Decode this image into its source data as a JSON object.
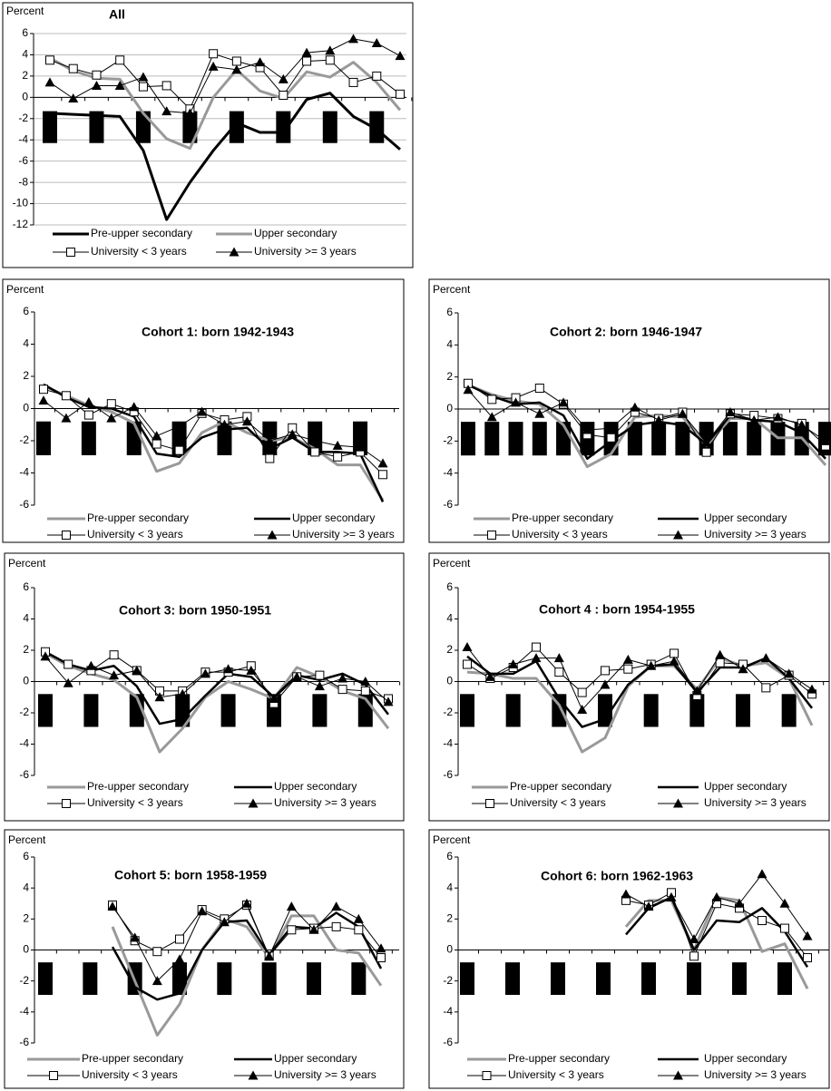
{
  "chart_data": [
    {
      "type": "line",
      "title": "All",
      "y_label": "Percent",
      "grid": true,
      "categories": [
        null,
        null,
        null,
        null,
        null,
        null,
        null,
        null,
        null,
        null,
        null,
        null,
        null,
        null,
        null,
        null
      ],
      "ylim": [
        -12,
        6
      ],
      "yticks": [
        -12,
        -10,
        -8,
        -6,
        -4,
        -2,
        0,
        2,
        4,
        6
      ],
      "bars": {
        "x": [
          0,
          2,
          4,
          6,
          8,
          10,
          12,
          14
        ],
        "range": [
          -1.3,
          -4.3
        ],
        "color": "#000000"
      },
      "series": [
        {
          "name": "Pre-upper secondary",
          "color": "#000000",
          "line_width": 3,
          "marker": null,
          "values": [
            -1.5,
            -1.6,
            -1.7,
            -1.8,
            -5,
            -11.5,
            -8,
            -5,
            -2.4,
            -3.3,
            -3.3,
            -0.2,
            0.4,
            -1.8,
            -3,
            -4.9
          ]
        },
        {
          "name": "Upper secondary",
          "color": "#999999",
          "line_width": 3,
          "marker": null,
          "values": [
            3.7,
            2.5,
            1.8,
            1.7,
            -1.5,
            -3.9,
            -4.8,
            0,
            2.6,
            0.6,
            -0.1,
            2.4,
            1.9,
            3.3,
            1.4,
            -1.2
          ]
        },
        {
          "name": "University < 3 years",
          "color": "#000000",
          "line_width": 1,
          "marker": "square",
          "values": [
            3.5,
            2.7,
            2.1,
            3.5,
            1,
            1.1,
            -1.1,
            4.1,
            3.4,
            2.8,
            0.2,
            3.4,
            3.5,
            1.4,
            2,
            0.3
          ]
        },
        {
          "name": "University >= 3 years",
          "color": "#000000",
          "line_width": 1,
          "marker": "triangle",
          "values": [
            1.4,
            -0.1,
            1.1,
            1.1,
            1.9,
            -1.3,
            -1.5,
            2.9,
            2.6,
            3.3,
            1.7,
            4.2,
            4.4,
            5.5,
            5.1,
            3.9
          ]
        }
      ]
    },
    {
      "type": "line",
      "title": "Cohort 1: born 1942-1943",
      "y_label": "Percent",
      "grid": false,
      "categories": [
        null,
        null,
        null,
        null,
        null,
        null,
        null,
        null,
        null,
        null,
        null,
        null,
        null,
        null,
        null,
        null
      ],
      "ylim": [
        -6,
        6
      ],
      "yticks": [
        -6,
        -4,
        -2,
        0,
        2,
        4,
        6
      ],
      "bars": {
        "x": [
          0,
          2,
          4,
          6,
          8,
          10,
          12,
          14
        ],
        "range": [
          -0.8,
          -2.9
        ],
        "color": "#000000"
      },
      "series": [
        {
          "name": "Pre-upper secondary",
          "color": "#999999",
          "line_width": 3,
          "marker": null,
          "values": [
            1.4,
            0.8,
            0.2,
            -0.2,
            -0.9,
            -3.9,
            -3.4,
            -1.5,
            -0.8,
            -1.5,
            -2,
            -1.8,
            -2.5,
            -3.5,
            -3.5,
            -5.7
          ]
        },
        {
          "name": "Upper secondary",
          "color": "#000000",
          "line_width": 2.5,
          "marker": null,
          "values": [
            1.5,
            0.7,
            0.1,
            0,
            -0.5,
            -2.8,
            -3,
            -1.8,
            -1.3,
            -1.2,
            -2.5,
            -1.8,
            -2.7,
            -2.7,
            -2.8,
            -5.8
          ]
        },
        {
          "name": "University < 3 years",
          "color": "#000000",
          "line_width": 1,
          "marker": "square",
          "values": [
            1.2,
            0.8,
            -0.4,
            0.3,
            -0.2,
            -2.2,
            -2.6,
            -0.3,
            -0.7,
            -0.5,
            -3.1,
            -1.2,
            -2.7,
            -3,
            -2.7,
            -4.1
          ]
        },
        {
          "name": "University >= 3 years",
          "color": "#000000",
          "line_width": 1,
          "marker": "triangle",
          "values": [
            0.5,
            -0.6,
            0.4,
            -0.6,
            0.1,
            -1.7,
            -1.1,
            -0.2,
            -1,
            -0.8,
            -2,
            -1.6,
            -2,
            -2.3,
            -2.4,
            -3.4
          ]
        }
      ]
    },
    {
      "type": "line",
      "title": "Cohort 2: born 1946-1947",
      "y_label": "Percent",
      "grid": false,
      "categories": [
        null,
        null,
        null,
        null,
        null,
        null,
        null,
        null,
        null,
        null,
        null,
        null,
        null,
        null,
        null,
        null
      ],
      "ylim": [
        -6,
        6
      ],
      "yticks": [
        -6,
        -4,
        -2,
        0,
        2,
        4,
        6
      ],
      "bars": {
        "x": [
          0,
          1,
          2,
          3,
          4,
          5,
          6,
          7,
          8,
          9,
          10,
          11,
          12,
          13,
          14,
          15
        ],
        "range": [
          -0.8,
          -2.9
        ],
        "color": "#000000"
      },
      "series": [
        {
          "name": "Pre-upper secondary",
          "color": "#999999",
          "line_width": 3,
          "marker": null,
          "values": [
            1.5,
            0.9,
            0.5,
            0.3,
            -1,
            -3.6,
            -2.8,
            -0.5,
            -0.4,
            -0.5,
            -2.3,
            -0.6,
            -0.6,
            -1.8,
            -1.8,
            -3.5
          ]
        },
        {
          "name": "Upper secondary",
          "color": "#000000",
          "line_width": 2.5,
          "marker": null,
          "values": [
            1.5,
            0.8,
            0.3,
            0.4,
            -0.4,
            -3.1,
            -2,
            -1,
            -0.8,
            -1,
            -2.2,
            -0.4,
            -0.7,
            -0.8,
            -1.5,
            -3.1
          ]
        },
        {
          "name": "University < 3 years",
          "color": "#000000",
          "line_width": 1,
          "marker": "square",
          "values": [
            1.6,
            0.6,
            0.7,
            1.3,
            0.3,
            -1.6,
            -1.8,
            -0.2,
            -0.6,
            -0.2,
            -2.7,
            -0.3,
            -0.4,
            -0.6,
            -0.9,
            -2.3
          ]
        },
        {
          "name": "University >= 3 years",
          "color": "#000000",
          "line_width": 1,
          "marker": "triangle",
          "values": [
            1.2,
            -0.5,
            0.4,
            -0.3,
            0.4,
            -1.3,
            -1.2,
            0.1,
            -0.7,
            -0.3,
            -2.1,
            -0.2,
            -0.7,
            -0.5,
            -1,
            -2
          ]
        }
      ]
    },
    {
      "type": "line",
      "title": "Cohort 3: born 1950-1951",
      "y_label": "Percent",
      "grid": false,
      "categories": [
        null,
        null,
        null,
        null,
        null,
        null,
        null,
        null,
        null,
        null,
        null,
        null,
        null,
        null,
        null,
        null
      ],
      "ylim": [
        -6,
        6
      ],
      "yticks": [
        -6,
        -4,
        -2,
        0,
        2,
        4,
        6
      ],
      "bars": {
        "x": [
          0,
          2,
          4,
          6,
          8,
          10,
          12,
          14
        ],
        "range": [
          -0.8,
          -2.9
        ],
        "color": "#000000"
      },
      "series": [
        {
          "name": "Pre-upper secondary",
          "color": "#999999",
          "line_width": 3,
          "marker": null,
          "values": [
            1.8,
            1,
            0.5,
            0.1,
            -1,
            -4.5,
            -3,
            -1,
            0,
            -0.5,
            -1.1,
            0.9,
            0.3,
            -0.6,
            -1.1,
            -3
          ]
        },
        {
          "name": "Upper secondary",
          "color": "#000000",
          "line_width": 2.5,
          "marker": null,
          "values": [
            1.9,
            1.1,
            0.7,
            1,
            -0.3,
            -2.7,
            -2.4,
            -0.9,
            0.5,
            0.3,
            -1,
            0.4,
            0.1,
            0.5,
            -0.2,
            -2.1
          ]
        },
        {
          "name": "University < 3 years",
          "color": "#000000",
          "line_width": 1,
          "marker": "square",
          "values": [
            1.9,
            1.1,
            0.7,
            1.7,
            0.7,
            -0.6,
            -0.6,
            0.6,
            0.6,
            1,
            -1.4,
            0.3,
            0.4,
            -0.5,
            -0.6,
            -1.1
          ]
        },
        {
          "name": "University >= 3 years",
          "color": "#000000",
          "line_width": 1,
          "marker": "triangle",
          "values": [
            1.6,
            -0.1,
            1,
            0.4,
            0.7,
            -1,
            -0.8,
            0.5,
            0.8,
            0.7,
            -1.1,
            0.3,
            -0.3,
            0.2,
            0,
            -1.3
          ]
        }
      ]
    },
    {
      "type": "line",
      "title": "Cohort 4 : born 1954-1955",
      "y_label": "Percent",
      "grid": false,
      "categories": [
        null,
        null,
        null,
        null,
        null,
        null,
        null,
        null,
        null,
        null,
        null,
        null,
        null,
        null,
        null,
        null
      ],
      "ylim": [
        -6,
        6
      ],
      "yticks": [
        -6,
        -4,
        -2,
        0,
        2,
        4,
        6
      ],
      "bars": {
        "x": [
          0,
          2,
          4,
          6,
          8,
          10,
          12,
          14
        ],
        "range": [
          -0.8,
          -2.9
        ],
        "color": "#000000"
      },
      "series": [
        {
          "name": "Pre-upper secondary",
          "color": "#999999",
          "line_width": 3,
          "marker": null,
          "values": [
            0.6,
            0.5,
            0.2,
            0.2,
            -1.5,
            -4.5,
            -3.6,
            -0.3,
            1,
            1,
            -0.5,
            1.5,
            1,
            1.2,
            0.2,
            -2.8
          ]
        },
        {
          "name": "Upper secondary",
          "color": "#000000",
          "line_width": 2.5,
          "marker": null,
          "values": [
            1.6,
            0.5,
            0.5,
            1.3,
            -1.1,
            -2.9,
            -2.4,
            -0.2,
            1,
            1.1,
            -0.7,
            0.9,
            0.9,
            1.5,
            0.2,
            -1.7
          ]
        },
        {
          "name": "University < 3 years",
          "color": "#000000",
          "line_width": 1,
          "marker": "square",
          "values": [
            1.1,
            0.2,
            0.9,
            2.2,
            0.6,
            -0.7,
            0.7,
            0.8,
            1.1,
            1.8,
            -0.9,
            1.2,
            1.1,
            -0.4,
            0.4,
            -0.8
          ]
        },
        {
          "name": "University >= 3 years",
          "color": "#000000",
          "line_width": 1,
          "marker": "triangle",
          "values": [
            2.2,
            0.3,
            1.1,
            1.5,
            1.5,
            -1.8,
            -0.2,
            1.4,
            1,
            1.3,
            -0.6,
            1.7,
            0.8,
            1.5,
            0.5,
            -0.5
          ]
        }
      ]
    },
    {
      "type": "line",
      "title": "Cohort 5: born 1958-1959",
      "y_label": "Percent",
      "grid": false,
      "categories": [
        null,
        null,
        null,
        null,
        null,
        null,
        null,
        null,
        null,
        null,
        null,
        null,
        null,
        null,
        null,
        null
      ],
      "ylim": [
        -6,
        6
      ],
      "yticks": [
        -6,
        -4,
        -2,
        0,
        2,
        4,
        6
      ],
      "bars": {
        "x": [
          0,
          2,
          4,
          6,
          8,
          10,
          12,
          14
        ],
        "range": [
          -0.8,
          -2.9
        ],
        "color": "#000000"
      },
      "series": [
        {
          "name": "Pre-upper secondary",
          "color": "#999999",
          "line_width": 3,
          "marker": null,
          "values": [
            null,
            null,
            null,
            1.5,
            -2,
            -5.5,
            -3.5,
            0,
            2,
            1.5,
            -0.5,
            2.2,
            2.2,
            0,
            -0.2,
            -2.3
          ]
        },
        {
          "name": "Upper secondary",
          "color": "#000000",
          "line_width": 2.5,
          "marker": null,
          "values": [
            null,
            null,
            null,
            0.2,
            -2.4,
            -3.2,
            -2.8,
            0,
            1.8,
            1.9,
            -0.3,
            1.5,
            1.4,
            2.4,
            1.5,
            -1.2
          ]
        },
        {
          "name": "University < 3 years",
          "color": "#000000",
          "line_width": 1,
          "marker": "square",
          "values": [
            null,
            null,
            null,
            2.9,
            0.6,
            -0.1,
            0.7,
            2.6,
            2,
            2.9,
            -0.4,
            1.3,
            1.4,
            1.5,
            1.3,
            -0.5
          ]
        },
        {
          "name": "University >= 3 years",
          "color": "#000000",
          "line_width": 1,
          "marker": "triangle",
          "values": [
            null,
            null,
            null,
            2.8,
            0.8,
            -2,
            -0.6,
            2.5,
            1.8,
            3,
            -0.4,
            2.8,
            1.3,
            2.8,
            2,
            0.1
          ]
        }
      ]
    },
    {
      "type": "line",
      "title": "Cohort 6: born 1962-1963",
      "y_label": "Percent",
      "grid": false,
      "categories": [
        null,
        null,
        null,
        null,
        null,
        null,
        null,
        null,
        null,
        null,
        null,
        null,
        null,
        null,
        null,
        null
      ],
      "ylim": [
        -6,
        6
      ],
      "yticks": [
        -6,
        -4,
        -2,
        0,
        2,
        4,
        6
      ],
      "bars": {
        "x": [
          0,
          2,
          4,
          6,
          8,
          10,
          12,
          14
        ],
        "range": [
          -0.8,
          -2.9
        ],
        "color": "#000000"
      },
      "series": [
        {
          "name": "Pre-upper secondary",
          "color": "#999999",
          "line_width": 3,
          "marker": null,
          "values": [
            null,
            null,
            null,
            null,
            null,
            null,
            null,
            1.5,
            3.2,
            3.2,
            0,
            3.4,
            3.2,
            -0.1,
            0.4,
            -2.5
          ]
        },
        {
          "name": "Upper secondary",
          "color": "#000000",
          "line_width": 2.5,
          "marker": null,
          "values": [
            null,
            null,
            null,
            null,
            null,
            null,
            null,
            1,
            2.7,
            3.4,
            0,
            1.9,
            1.8,
            2.7,
            1.2,
            -1.1
          ]
        },
        {
          "name": "University < 3 years",
          "color": "#000000",
          "line_width": 1,
          "marker": "square",
          "values": [
            null,
            null,
            null,
            null,
            null,
            null,
            null,
            3.2,
            2.9,
            3.7,
            -0.4,
            3,
            2.7,
            1.9,
            1.4,
            -0.5
          ]
        },
        {
          "name": "University >= 3 years",
          "color": "#000000",
          "line_width": 1,
          "marker": "triangle",
          "values": [
            null,
            null,
            null,
            null,
            null,
            null,
            null,
            3.6,
            2.8,
            3.4,
            0.7,
            3.4,
            3,
            4.9,
            3,
            0.9
          ]
        }
      ]
    }
  ]
}
